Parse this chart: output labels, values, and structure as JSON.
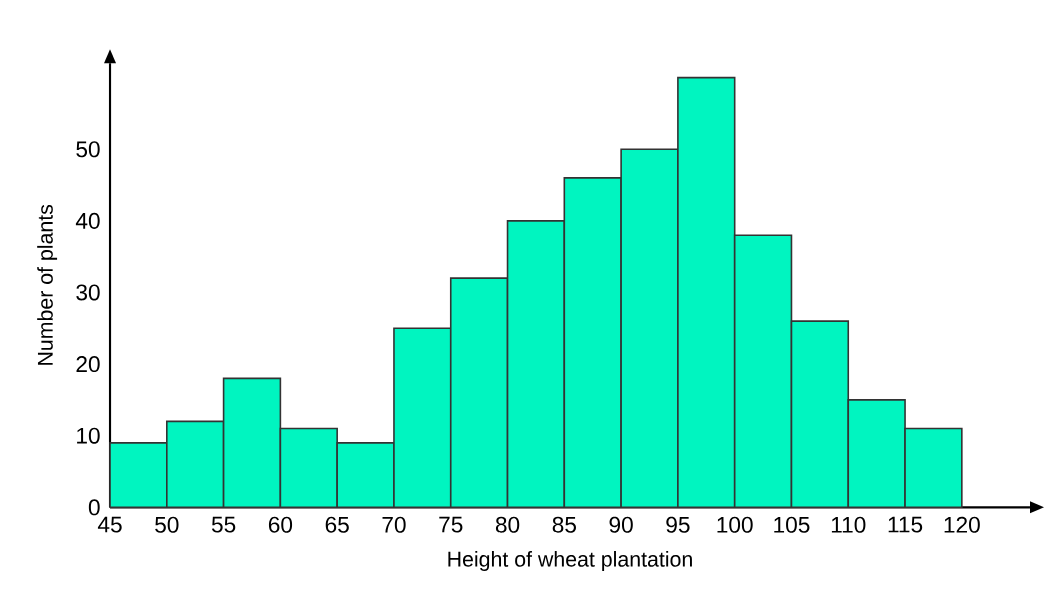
{
  "chart_data": {
    "type": "histogram",
    "xlabel": "Height of wheat plantation",
    "ylabel": "Number of plants",
    "bins": [
      45,
      50,
      55,
      60,
      65,
      70,
      75,
      80,
      85,
      90,
      95,
      100,
      105,
      110,
      115,
      120
    ],
    "values": [
      9,
      12,
      18,
      11,
      9,
      25,
      32,
      40,
      46,
      50,
      60,
      38,
      26,
      15,
      11
    ],
    "color": "#00f5c0",
    "xlim": [
      45,
      126
    ],
    "ylim": [
      0,
      62
    ],
    "xticks": [
      45,
      50,
      55,
      60,
      65,
      70,
      75,
      80,
      85,
      90,
      95,
      100,
      105,
      110,
      115,
      120
    ],
    "yticks": [
      0,
      10,
      20,
      30,
      40,
      50
    ]
  }
}
